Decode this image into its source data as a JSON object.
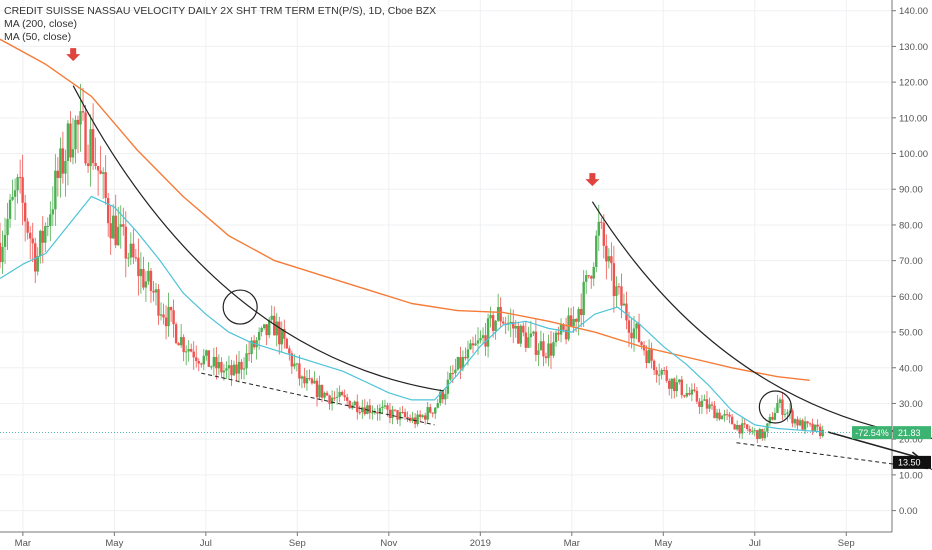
{
  "colors": {
    "up": "#26a69a",
    "up_candle": "#4caf50",
    "down": "#ef5350",
    "ma200": "#f57c38",
    "ma50": "#4dc3d8",
    "annotation": "#222222",
    "arrow_marker": "#e0443e",
    "price_tag": "#3cb371",
    "target_tag": "#111111",
    "last_price_line": "#26a69a"
  },
  "chart_data": {
    "type": "candlestick",
    "title": "CREDIT SUISSE NASSAU VELOCITY DAILY 2X SHT TRM TERM ETN(P/S), 1D, Cboe BZX",
    "indicators": [
      {
        "name": "MA (200, close)"
      },
      {
        "name": "MA (50, close)"
      }
    ],
    "x_tick_labels": [
      "Mar",
      "May",
      "Jul",
      "Sep",
      "Nov",
      "2019",
      "Mar",
      "May",
      "Jul",
      "Sep"
    ],
    "y_tick_values": [
      0,
      10,
      20,
      30,
      40,
      50,
      60,
      70,
      80,
      90,
      100,
      110,
      120,
      130,
      140
    ],
    "y_tick_labels": [
      "0.00",
      "10.00",
      "20.00",
      "30.00",
      "40.00",
      "50.00",
      "60.00",
      "70.00",
      "80.00",
      "90.00",
      "100.00",
      "110.00",
      "120.00",
      "130.00",
      "140.00"
    ],
    "ylim": [
      -6,
      143
    ],
    "x_range_months": [
      0,
      19.5
    ],
    "last_price": 21.83,
    "last_price_label": "21.83",
    "change_label": "-72.54%",
    "target_price": 13.5,
    "target_label": "13.50",
    "price_path": [
      [
        0,
        75
      ],
      [
        0.4,
        90
      ],
      [
        0.8,
        70
      ],
      [
        1.2,
        90
      ],
      [
        1.6,
        108
      ],
      [
        2.0,
        103
      ],
      [
        2.4,
        82
      ],
      [
        2.8,
        72
      ],
      [
        3.4,
        60
      ],
      [
        4.0,
        47
      ],
      [
        4.6,
        41
      ],
      [
        5.1,
        38
      ],
      [
        5.6,
        47
      ],
      [
        6.0,
        52
      ],
      [
        6.6,
        36
      ],
      [
        7.2,
        32
      ],
      [
        8.0,
        29
      ],
      [
        8.6,
        27
      ],
      [
        9.1,
        25
      ],
      [
        9.5,
        29
      ],
      [
        10.0,
        40
      ],
      [
        10.5,
        47
      ],
      [
        10.9,
        55
      ],
      [
        11.5,
        48
      ],
      [
        12.0,
        45
      ],
      [
        12.5,
        52
      ],
      [
        12.8,
        62
      ],
      [
        13.1,
        79
      ],
      [
        13.4,
        63
      ],
      [
        13.8,
        52
      ],
      [
        14.2,
        43
      ],
      [
        14.6,
        37
      ],
      [
        15.0,
        33
      ],
      [
        15.6,
        28
      ],
      [
        16.2,
        23
      ],
      [
        16.7,
        21
      ],
      [
        17.0,
        30
      ],
      [
        17.5,
        24
      ],
      [
        18.0,
        21.8
      ]
    ],
    "ma200": [
      [
        0,
        132
      ],
      [
        1,
        125
      ],
      [
        2,
        116
      ],
      [
        3,
        101
      ],
      [
        4,
        88
      ],
      [
        5,
        77
      ],
      [
        6,
        70
      ],
      [
        7,
        66
      ],
      [
        8,
        62
      ],
      [
        9,
        58
      ],
      [
        10,
        56
      ],
      [
        11,
        55.5
      ],
      [
        12,
        53
      ],
      [
        13,
        50
      ],
      [
        14,
        46
      ],
      [
        15,
        43
      ],
      [
        16,
        40
      ],
      [
        17,
        37.5
      ],
      [
        17.7,
        36.5
      ]
    ],
    "ma50": [
      [
        0,
        65
      ],
      [
        0.5,
        69
      ],
      [
        1,
        72
      ],
      [
        1.5,
        80
      ],
      [
        2,
        88
      ],
      [
        2.5,
        85
      ],
      [
        3,
        78
      ],
      [
        3.5,
        70
      ],
      [
        4,
        61
      ],
      [
        4.5,
        55
      ],
      [
        5,
        50
      ],
      [
        5.5,
        47
      ],
      [
        6,
        45
      ],
      [
        6.5,
        43
      ],
      [
        7,
        41
      ],
      [
        7.5,
        39
      ],
      [
        8,
        36
      ],
      [
        8.5,
        33
      ],
      [
        9,
        31
      ],
      [
        9.5,
        31
      ],
      [
        10,
        38
      ],
      [
        10.5,
        46
      ],
      [
        11,
        52
      ],
      [
        11.5,
        53
      ],
      [
        12,
        51
      ],
      [
        12.5,
        50
      ],
      [
        13,
        55
      ],
      [
        13.5,
        57
      ],
      [
        14,
        52
      ],
      [
        14.5,
        46
      ],
      [
        15,
        41
      ],
      [
        15.5,
        35
      ],
      [
        16,
        28
      ],
      [
        16.5,
        24
      ],
      [
        17,
        23
      ],
      [
        17.5,
        22.5
      ],
      [
        18,
        22
      ]
    ],
    "annotations": {
      "peak_markers": [
        {
          "x": 1.6,
          "y": 127
        },
        {
          "x": 12.95,
          "y": 92
        }
      ],
      "decay_curves": [
        {
          "from": [
            1.6,
            119
          ],
          "to": [
            9.7,
            33.5
          ]
        },
        {
          "from": [
            12.95,
            86.5
          ],
          "to": [
            20.5,
            20
          ]
        }
      ],
      "support_lines": [
        {
          "from": [
            4.4,
            38.5
          ],
          "to": [
            9.5,
            24
          ]
        },
        {
          "from": [
            16.1,
            19
          ],
          "to": [
            20.4,
            11.5
          ]
        }
      ],
      "circles": [
        {
          "cx": 5.25,
          "cy": 57,
          "r": 17
        },
        {
          "cx": 16.95,
          "cy": 29,
          "r": 16
        }
      ],
      "arrow": {
        "from": [
          18.1,
          22
        ],
        "to": [
          20.1,
          14.8
        ]
      },
      "target_line": {
        "from": [
          19.5,
          13.5
        ]
      }
    }
  }
}
